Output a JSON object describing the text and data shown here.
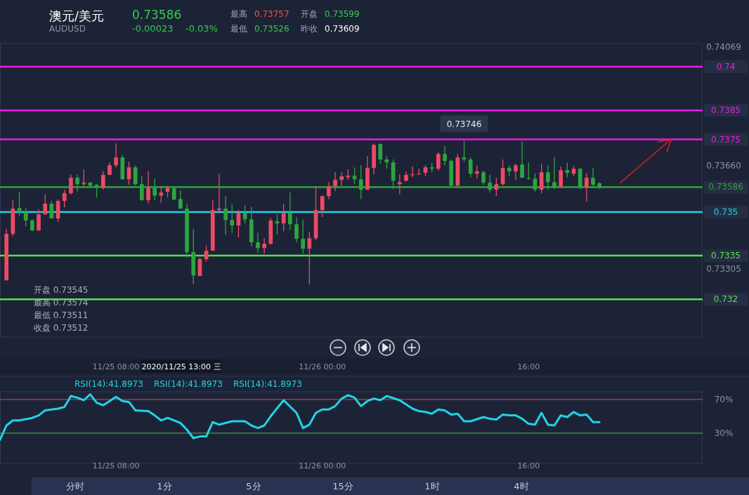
{
  "chart_data": [
    {
      "type": "other",
      "title": "澳元/美元",
      "subtitle": "AUDUSD",
      "annotations": [
        "0.73586",
        "-0.00023",
        "-0.03%",
        "最高",
        "0.73757",
        "开盘",
        "0.73599",
        "最低",
        "0.73526",
        "昨收",
        "0.73609"
      ]
    },
    {
      "type": "candlestick",
      "x": [
        "2020-11-24T23:30",
        "2020-11-25T00:00",
        "2020-11-25T00:30",
        "2020-11-25T01:00",
        "2020-11-25T01:30",
        "2020-11-25T02:00",
        "2020-11-25T02:30",
        "2020-11-25T03:00",
        "2020-11-25T03:30",
        "2020-11-25T04:00",
        "2020-11-25T04:30",
        "2020-11-25T05:00",
        "2020-11-25T05:30",
        "2020-11-25T06:00",
        "2020-11-25T06:30",
        "2020-11-25T07:00",
        "2020-11-25T07:30",
        "2020-11-25T08:00",
        "2020-11-25T08:30",
        "2020-11-25T09:00",
        "2020-11-25T09:30",
        "2020-11-25T10:00",
        "2020-11-25T10:30",
        "2020-11-25T11:00",
        "2020-11-25T11:30",
        "2020-11-25T12:00",
        "2020-11-25T12:30",
        "2020-11-25T13:00",
        "2020-11-25T13:30",
        "2020-11-25T14:00",
        "2020-11-25T14:30",
        "2020-11-25T15:00",
        "2020-11-25T15:30",
        "2020-11-25T16:00",
        "2020-11-25T16:30",
        "2020-11-25T17:00",
        "2020-11-25T17:30",
        "2020-11-25T18:00",
        "2020-11-25T18:30",
        "2020-11-25T19:00",
        "2020-11-25T19:30",
        "2020-11-25T20:00",
        "2020-11-25T20:30",
        "2020-11-25T21:00",
        "2020-11-25T21:30",
        "2020-11-25T22:00",
        "2020-11-25T22:30",
        "2020-11-25T23:00",
        "2020-11-25T23:30",
        "2020-11-26T00:00",
        "2020-11-26T00:30",
        "2020-11-26T01:00",
        "2020-11-26T01:30",
        "2020-11-26T02:00",
        "2020-11-26T02:30",
        "2020-11-26T03:00",
        "2020-11-26T03:30",
        "2020-11-26T04:00",
        "2020-11-26T04:30",
        "2020-11-26T05:00",
        "2020-11-26T05:30",
        "2020-11-26T06:00",
        "2020-11-26T06:30",
        "2020-11-26T07:00",
        "2020-11-26T07:30",
        "2020-11-26T08:00",
        "2020-11-26T08:30",
        "2020-11-26T09:00",
        "2020-11-26T09:30",
        "2020-11-26T10:00",
        "2020-11-26T10:30",
        "2020-11-26T11:00",
        "2020-11-26T11:30",
        "2020-11-26T12:00",
        "2020-11-26T12:30",
        "2020-11-26T13:00",
        "2020-11-26T13:30",
        "2020-11-26T14:00",
        "2020-11-26T14:30",
        "2020-11-26T15:00",
        "2020-11-26T15:30",
        "2020-11-26T16:00",
        "2020-11-26T16:30",
        "2020-11-26T17:00",
        "2020-11-26T17:30",
        "2020-11-26T18:00",
        "2020-11-26T18:30",
        "2020-11-26T19:00",
        "2020-11-26T19:30",
        "2020-11-26T20:00",
        "2020-11-26T20:30",
        "2020-11-26T21:00",
        "2020-11-26T21:30"
      ],
      "ohlc": [
        [
          0.73265,
          0.73442,
          0.73265,
          0.73425
        ],
        [
          0.73425,
          0.73541,
          0.73417,
          0.73512
        ],
        [
          0.73514,
          0.7357,
          0.73487,
          0.735
        ],
        [
          0.735,
          0.73514,
          0.73451,
          0.73471
        ],
        [
          0.73471,
          0.73475,
          0.73434,
          0.73437
        ],
        [
          0.73437,
          0.73509,
          0.73434,
          0.73492
        ],
        [
          0.73492,
          0.73562,
          0.73492,
          0.73529
        ],
        [
          0.73529,
          0.73538,
          0.73478,
          0.73478
        ],
        [
          0.73478,
          0.73543,
          0.73466,
          0.73538
        ],
        [
          0.73538,
          0.73577,
          0.73516,
          0.73565
        ],
        [
          0.73565,
          0.7363,
          0.7356,
          0.73618
        ],
        [
          0.73618,
          0.73628,
          0.7357,
          0.73596
        ],
        [
          0.73596,
          0.73647,
          0.73589,
          0.73601
        ],
        [
          0.73601,
          0.73603,
          0.73582,
          0.73591
        ],
        [
          0.73594,
          0.73596,
          0.7355,
          0.73584
        ],
        [
          0.73584,
          0.7364,
          0.73577,
          0.73628
        ],
        [
          0.73628,
          0.73671,
          0.73628,
          0.73661
        ],
        [
          0.73661,
          0.73736,
          0.73654,
          0.73688
        ],
        [
          0.73688,
          0.73695,
          0.73611,
          0.73613
        ],
        [
          0.73613,
          0.73673,
          0.73594,
          0.73654
        ],
        [
          0.73654,
          0.73661,
          0.73591,
          0.73596
        ],
        [
          0.73596,
          0.73623,
          0.73538,
          0.73541
        ],
        [
          0.73541,
          0.7364,
          0.73529,
          0.73584
        ],
        [
          0.73582,
          0.73615,
          0.73541,
          0.73557
        ],
        [
          0.73557,
          0.73591,
          0.73531,
          0.73567
        ],
        [
          0.7357,
          0.73591,
          0.7355,
          0.73582
        ],
        [
          0.73582,
          0.73589,
          0.73541,
          0.73543
        ],
        [
          0.73545,
          0.73574,
          0.73511,
          0.73512
        ],
        [
          0.73512,
          0.73529,
          0.73343,
          0.73362
        ],
        [
          0.73362,
          0.73442,
          0.73251,
          0.73282
        ],
        [
          0.7328,
          0.73343,
          0.7328,
          0.73338
        ],
        [
          0.73338,
          0.73384,
          0.7333,
          0.73367
        ],
        [
          0.73367,
          0.73541,
          0.73367,
          0.73507
        ],
        [
          0.73507,
          0.73632,
          0.73495,
          0.73512
        ],
        [
          0.73512,
          0.73555,
          0.73422,
          0.73473
        ],
        [
          0.73473,
          0.73526,
          0.73427,
          0.73454
        ],
        [
          0.73454,
          0.73507,
          0.73413,
          0.73497
        ],
        [
          0.73497,
          0.73524,
          0.73461,
          0.73475
        ],
        [
          0.73475,
          0.73519,
          0.73381,
          0.73396
        ],
        [
          0.73396,
          0.73429,
          0.73359,
          0.73376
        ],
        [
          0.73376,
          0.7341,
          0.73357,
          0.73391
        ],
        [
          0.73391,
          0.7348,
          0.73388,
          0.73471
        ],
        [
          0.73468,
          0.73492,
          0.73422,
          0.73461
        ],
        [
          0.73461,
          0.73529,
          0.73434,
          0.73497
        ],
        [
          0.73497,
          0.73567,
          0.73439,
          0.73458
        ],
        [
          0.73458,
          0.73483,
          0.73396,
          0.73408
        ],
        [
          0.73408,
          0.73473,
          0.73357,
          0.73374
        ],
        [
          0.73374,
          0.73432,
          0.73251,
          0.7341
        ],
        [
          0.7341,
          0.73589,
          0.73403,
          0.73507
        ],
        [
          0.73507,
          0.73557,
          0.73483,
          0.73555
        ],
        [
          0.73555,
          0.73603,
          0.73545,
          0.73589
        ],
        [
          0.73589,
          0.73637,
          0.73572,
          0.73611
        ],
        [
          0.73611,
          0.73637,
          0.73591,
          0.73623
        ],
        [
          0.7362,
          0.73647,
          0.73611,
          0.73625
        ],
        [
          0.73625,
          0.73654,
          0.73596,
          0.73613
        ],
        [
          0.73613,
          0.73661,
          0.73545,
          0.73577
        ],
        [
          0.73577,
          0.73693,
          0.73577,
          0.73652
        ],
        [
          0.73652,
          0.73736,
          0.7363,
          0.73731
        ],
        [
          0.73734,
          0.73736,
          0.73666,
          0.73681
        ],
        [
          0.73681,
          0.73693,
          0.73649,
          0.73671
        ],
        [
          0.73671,
          0.73681,
          0.73579,
          0.73608
        ],
        [
          0.73596,
          0.7363,
          0.73562,
          0.73603
        ],
        [
          0.73608,
          0.7364,
          0.73606,
          0.73628
        ],
        [
          0.73628,
          0.73657,
          0.7362,
          0.7363
        ],
        [
          0.7363,
          0.73649,
          0.7363,
          0.73632
        ],
        [
          0.73635,
          0.73661,
          0.73623,
          0.73654
        ],
        [
          0.73654,
          0.73669,
          0.73637,
          0.73649
        ],
        [
          0.73649,
          0.73705,
          0.73642,
          0.737
        ],
        [
          0.737,
          0.73727,
          0.73661,
          0.73676
        ],
        [
          0.73676,
          0.73681,
          0.73586,
          0.73591
        ],
        [
          0.73591,
          0.737,
          0.73591,
          0.73688
        ],
        [
          0.73688,
          0.73746,
          0.73673,
          0.73681
        ],
        [
          0.73681,
          0.73688,
          0.7362,
          0.73632
        ],
        [
          0.73632,
          0.73661,
          0.73615,
          0.7364
        ],
        [
          0.73637,
          0.73642,
          0.73594,
          0.73601
        ],
        [
          0.73601,
          0.73628,
          0.73567,
          0.73577
        ],
        [
          0.73577,
          0.73618,
          0.73555,
          0.73596
        ],
        [
          0.73596,
          0.73681,
          0.73591,
          0.73652
        ],
        [
          0.73652,
          0.73661,
          0.73623,
          0.7364
        ],
        [
          0.7364,
          0.73666,
          0.73611,
          0.73661
        ],
        [
          0.73664,
          0.73743,
          0.73618,
          0.73618
        ],
        [
          0.73618,
          0.73671,
          0.73611,
          0.73615
        ],
        [
          0.73615,
          0.73632,
          0.7357,
          0.73577
        ],
        [
          0.73577,
          0.73666,
          0.73565,
          0.73637
        ],
        [
          0.73637,
          0.73661,
          0.73577,
          0.73603
        ],
        [
          0.73603,
          0.7369,
          0.73579,
          0.73586
        ],
        [
          0.73586,
          0.73657,
          0.73586,
          0.73644
        ],
        [
          0.73644,
          0.73669,
          0.7362,
          0.73635
        ],
        [
          0.73632,
          0.73659,
          0.73623,
          0.73649
        ],
        [
          0.73649,
          0.73652,
          0.73579,
          0.73584
        ],
        [
          0.73584,
          0.73635,
          0.73536,
          0.73618
        ],
        [
          0.73618,
          0.73652,
          0.73589,
          0.73594
        ],
        [
          0.73599,
          0.73603,
          0.73579,
          0.73586
        ]
      ],
      "colors": [
        "#ec4a65",
        "#ec4a65",
        "#2ca53e",
        "#2ca53e",
        "#2ca53e",
        "#ec4a65",
        "#ec4a65",
        "#2ca53e",
        "#ec4a65",
        "#ec4a65",
        "#ec4a65",
        "#2ca53e",
        "#ec4a65",
        "#2ca53e",
        "#2ca53e",
        "#ec4a65",
        "#ec4a65",
        "#ec4a65",
        "#2ca53e",
        "#ec4a65",
        "#2ca53e",
        "#2ca53e",
        "#ec4a65",
        "#2ca53e",
        "#ec4a65",
        "#ec4a65",
        "#2ca53e",
        "#2ca53e",
        "#2ca53e",
        "#2ca53e",
        "#ec4a65",
        "#ec4a65",
        "#ec4a65",
        "#ec4a65",
        "#2ca53e",
        "#2ca53e",
        "#ec4a65",
        "#2ca53e",
        "#2ca53e",
        "#2ca53e",
        "#ec4a65",
        "#ec4a65",
        "#2ca53e",
        "#ec4a65",
        "#2ca53e",
        "#2ca53e",
        "#2ca53e",
        "#ec4a65",
        "#ec4a65",
        "#ec4a65",
        "#ec4a65",
        "#ec4a65",
        "#ec4a65",
        "#ec4a65",
        "#2ca53e",
        "#2ca53e",
        "#ec4a65",
        "#ec4a65",
        "#2ca53e",
        "#2ca53e",
        "#2ca53e",
        "#ec4a65",
        "#ec4a65",
        "#ec4a65",
        "#ec4a65",
        "#ec4a65",
        "#2ca53e",
        "#ec4a65",
        "#2ca53e",
        "#2ca53e",
        "#ec4a65",
        "#2ca53e",
        "#2ca53e",
        "#ec4a65",
        "#2ca53e",
        "#2ca53e",
        "#ec4a65",
        "#ec4a65",
        "#2ca53e",
        "#ec4a65",
        "#2ca53e",
        "#2ca53e",
        "#2ca53e",
        "#ec4a65",
        "#2ca53e",
        "#2ca53e",
        "#ec4a65",
        "#2ca53e",
        "#ec4a65",
        "#2ca53e",
        "#ec4a65",
        "#2ca53e",
        "#2ca53e"
      ],
      "xlim": [
        "2020-11-24T23:00",
        "2020-11-27T05:30"
      ],
      "xticks": [
        {
          "value": "2020-11-25T08:00",
          "label": "11/25 08:00"
        },
        {
          "value": "2020-11-26T00:00",
          "label": "11/26 00:00"
        },
        {
          "value": "2020-11-26T16:00",
          "label": "16:00"
        }
      ],
      "ylim": [
        0.7307,
        0.7408
      ],
      "yticks": [
        0.73305,
        {
          "value": 0.7366,
          "label": "0.73660"
        },
        0.74069
      ],
      "ref_lines": [
        {
          "axis": "y",
          "value": 0.74,
          "label": "0.74",
          "color": "#e81ce8"
        },
        {
          "axis": "y",
          "value": 0.7385,
          "label": "0.7385",
          "color": "#e81ce8"
        },
        {
          "axis": "y",
          "value": 0.7375,
          "label": "0.7375",
          "color": "#e81ce8"
        },
        {
          "axis": "y",
          "value": 0.735,
          "label": "0.735",
          "color": "#22d3e6"
        },
        {
          "axis": "y",
          "value": 0.7335,
          "label": "0.7335",
          "color": "#56e04a"
        },
        {
          "axis": "y",
          "value": 0.732,
          "label": "0.732",
          "color": "#56e04a"
        },
        {
          "axis": "y",
          "value": 0.73586,
          "label": "0.73586",
          "color": "#2ca53e"
        }
      ],
      "annotations": [
        {
          "text": "0.73746",
          "x": "2020-11-26T11:00",
          "y": 0.73746
        },
        "2020/11/25 13:00 三",
        "开盘 0.73545",
        "最高 0.73574",
        "最低 0.73511",
        "收盘 0.73512"
      ]
    },
    {
      "type": "line",
      "series": [
        {
          "color": "#22d3e6",
          "x": [
            "2020-11-24T23:00",
            "2020-11-24T23:30",
            "2020-11-25T00:00",
            "2020-11-25T00:30",
            "2020-11-25T01:30",
            "2020-11-25T02:00",
            "2020-11-25T02:30",
            "2020-11-25T03:30",
            "2020-11-25T04:00",
            "2020-11-25T04:30",
            "2020-11-25T05:00",
            "2020-11-25T05:30",
            "2020-11-25T06:00",
            "2020-11-25T06:30",
            "2020-11-25T07:00",
            "2020-11-25T08:00",
            "2020-11-25T08:30",
            "2020-11-25T09:00",
            "2020-11-25T09:30",
            "2020-11-25T10:30",
            "2020-11-25T11:00",
            "2020-11-25T11:30",
            "2020-11-25T12:00",
            "2020-11-25T13:00",
            "2020-11-25T13:30",
            "2020-11-25T14:00",
            "2020-11-25T14:30",
            "2020-11-25T15:00",
            "2020-11-25T15:30",
            "2020-11-25T16:00",
            "2020-11-25T17:00",
            "2020-11-25T18:00",
            "2020-11-25T18:30",
            "2020-11-25T19:00",
            "2020-11-25T19:30",
            "2020-11-25T20:00",
            "2020-11-25T21:00",
            "2020-11-25T22:00",
            "2020-11-25T22:30",
            "2020-11-25T23:00",
            "2020-11-25T23:30",
            "2020-11-26T00:00",
            "2020-11-26T00:30",
            "2020-11-26T01:00",
            "2020-11-26T01:30",
            "2020-11-26T02:00",
            "2020-11-26T02:30",
            "2020-11-26T03:00",
            "2020-11-26T03:30",
            "2020-11-26T04:00",
            "2020-11-26T04:30",
            "2020-11-26T05:00",
            "2020-11-26T06:00",
            "2020-11-26T06:30",
            "2020-11-26T07:00",
            "2020-11-26T07:30",
            "2020-11-26T08:00",
            "2020-11-26T08:30",
            "2020-11-26T09:00",
            "2020-11-26T09:30",
            "2020-11-26T10:00",
            "2020-11-26T10:30",
            "2020-11-26T11:00",
            "2020-11-26T11:30",
            "2020-11-26T12:30",
            "2020-11-26T13:00",
            "2020-11-26T13:30",
            "2020-11-26T14:00",
            "2020-11-26T14:30",
            "2020-11-26T15:00",
            "2020-11-26T15:30",
            "2020-11-26T16:00",
            "2020-11-26T16:30",
            "2020-11-26T17:00",
            "2020-11-26T17:30",
            "2020-11-26T18:00",
            "2020-11-26T18:30",
            "2020-11-26T19:00",
            "2020-11-26T19:30",
            "2020-11-26T20:00",
            "2020-11-26T20:30",
            "2020-11-26T21:00",
            "2020-11-26T21:30"
          ],
          "values": [
            22,
            39,
            45,
            45,
            48,
            51,
            57,
            59,
            61,
            74,
            72,
            69,
            76,
            66,
            63,
            73,
            68,
            67,
            57,
            56,
            51,
            45,
            48,
            42,
            34,
            24,
            26,
            26,
            43,
            40,
            44,
            44,
            39,
            36,
            39,
            50,
            69,
            54,
            36,
            40,
            54,
            58,
            58,
            62,
            71,
            75,
            72,
            62,
            68,
            71,
            69,
            74,
            69,
            64,
            59,
            56,
            55,
            53,
            58,
            57,
            52,
            53,
            44,
            44,
            49,
            47,
            46,
            52,
            51,
            51,
            47,
            41,
            40,
            54,
            40,
            39,
            51,
            49,
            55,
            51,
            52,
            43,
            43
          ]
        }
      ],
      "xlim": [
        "2020-11-24T23:00",
        "2020-11-27T05:30"
      ],
      "xticks": [
        {
          "value": "2020-11-25T08:00",
          "label": "11/25 08:00"
        },
        {
          "value": "2020-11-26T00:00",
          "label": "11/26 00:00"
        },
        {
          "value": "2020-11-26T16:00",
          "label": "16:00"
        }
      ],
      "ylim": [
        -6,
        79
      ],
      "yticks": [
        {
          "value": 30,
          "label": "30%"
        },
        {
          "value": 70,
          "label": "70%"
        }
      ],
      "ref_lines": [
        {
          "axis": "y",
          "value": 70,
          "color": "#b3414b"
        },
        {
          "axis": "y",
          "value": 30,
          "color": "#3f9e4a"
        }
      ],
      "annotations": [
        "RSI(14):41.8973",
        "RSI(14):41.8973",
        "RSI(14):41.8973"
      ]
    },
    {
      "type": "other",
      "annotations": [
        "分时",
        "1分",
        "5分",
        "15分",
        "1时",
        "4时"
      ]
    }
  ]
}
